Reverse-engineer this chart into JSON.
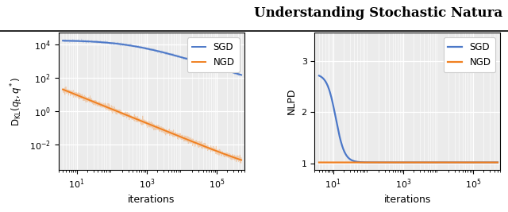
{
  "title": "Understanding Stochastic Natura",
  "title_fontsize": 12,
  "title_fontweight": "bold",
  "sgd_color": "#4C78C8",
  "ngd_color": "#F08020",
  "background_color": "#EBEBEB",
  "left_ylabel": "$\\mathrm{D_{KL}}(q_t, q^*)$",
  "right_ylabel": "NLPD",
  "xlabel": "iterations",
  "left_xlim": [
    3,
    600000
  ],
  "left_ylim": [
    0.0003,
    50000.0
  ],
  "right_xlim": [
    3,
    600000
  ],
  "right_ylim": [
    0.88,
    3.55
  ],
  "right_yticks": [
    1,
    2,
    3
  ],
  "legend_labels": [
    "SGD",
    "NGD"
  ],
  "n_points": 2000,
  "seed": 42
}
